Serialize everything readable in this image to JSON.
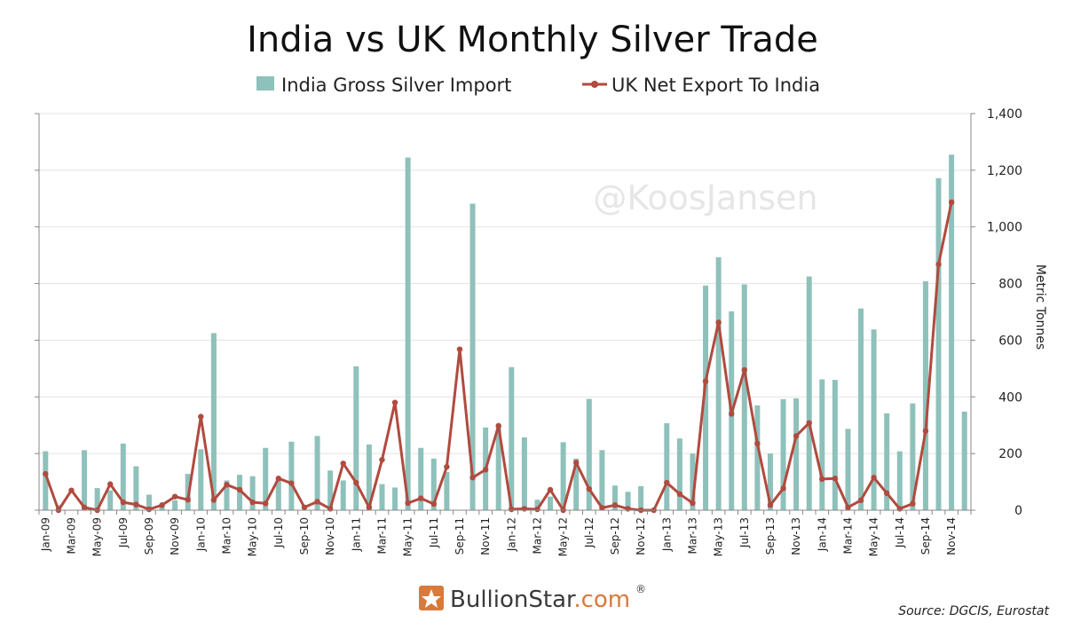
{
  "chart_data": {
    "type": "bar",
    "title": "India vs UK Monthly Silver Trade",
    "ylabel": "Metric Tonnes",
    "xlabel": "",
    "ylim": [
      0,
      1400
    ],
    "yticks": [
      "0",
      "200",
      "400",
      "600",
      "800",
      "1,000",
      "1,200",
      "1,400"
    ],
    "grid": true,
    "legend_position": "top-center",
    "x_tick_labels": [
      "Jan-09",
      "Mar-09",
      "May-09",
      "Jul-09",
      "Sep-09",
      "Nov-09",
      "Jan-10",
      "Mar-10",
      "May-10",
      "Jul-10",
      "Sep-10",
      "Nov-10",
      "Jan-11",
      "Mar-11",
      "May-11",
      "Jul-11",
      "Sep-11",
      "Nov-11",
      "Jan-12",
      "Mar-12",
      "May-12",
      "Jul-12",
      "Sep-12",
      "Nov-12",
      "Jan-13",
      "Mar-13",
      "May-13",
      "Jul-13",
      "Sep-13",
      "Nov-13",
      "Jan-14",
      "Mar-14",
      "May-14",
      "Jul-14",
      "Sep-14",
      "Nov-14"
    ],
    "categories": [
      "Jan-09",
      "Feb-09",
      "Mar-09",
      "Apr-09",
      "May-09",
      "Jun-09",
      "Jul-09",
      "Aug-09",
      "Sep-09",
      "Oct-09",
      "Nov-09",
      "Dec-09",
      "Jan-10",
      "Feb-10",
      "Mar-10",
      "Apr-10",
      "May-10",
      "Jun-10",
      "Jul-10",
      "Aug-10",
      "Sep-10",
      "Oct-10",
      "Nov-10",
      "Dec-10",
      "Jan-11",
      "Feb-11",
      "Mar-11",
      "Apr-11",
      "May-11",
      "Jun-11",
      "Jul-11",
      "Aug-11",
      "Sep-11",
      "Oct-11",
      "Nov-11",
      "Dec-11",
      "Jan-12",
      "Feb-12",
      "Mar-12",
      "Apr-12",
      "May-12",
      "Jun-12",
      "Jul-12",
      "Aug-12",
      "Sep-12",
      "Oct-12",
      "Nov-12",
      "Dec-12",
      "Jan-13",
      "Feb-13",
      "Mar-13",
      "Apr-13",
      "May-13",
      "Jun-13",
      "Jul-13",
      "Aug-13",
      "Sep-13",
      "Oct-13",
      "Nov-13",
      "Dec-13",
      "Jan-14",
      "Feb-14",
      "Mar-14",
      "Apr-14",
      "May-14",
      "Jun-14",
      "Jul-14",
      "Aug-14",
      "Sep-14",
      "Oct-14",
      "Nov-14",
      "Dec-14"
    ],
    "series": [
      {
        "name": "India Gross Silver Import",
        "type": "bar",
        "color": "#8fc1bb",
        "values": [
          208,
          18,
          0,
          212,
          78,
          70,
          235,
          155,
          55,
          18,
          35,
          128,
          215,
          625,
          105,
          125,
          120,
          220,
          110,
          242,
          0,
          262,
          140,
          105,
          508,
          232,
          92,
          80,
          1245,
          220,
          182,
          135,
          0,
          1082,
          292,
          302,
          505,
          257,
          37,
          48,
          240,
          182,
          393,
          212,
          87,
          65,
          85,
          0,
          307,
          253,
          200,
          793,
          893,
          702,
          797,
          370,
          200,
          392,
          395,
          825,
          462,
          460,
          287,
          712,
          638,
          342,
          208,
          377,
          808,
          1172,
          1255,
          348
        ]
      },
      {
        "name": "UK Net Export To India",
        "type": "line",
        "color": "#b14a3f",
        "values": [
          128,
          0,
          70,
          10,
          0,
          92,
          28,
          20,
          3,
          18,
          48,
          37,
          330,
          36,
          90,
          72,
          28,
          24,
          112,
          95,
          10,
          30,
          5,
          165,
          97,
          10,
          178,
          380,
          25,
          42,
          22,
          153,
          568,
          115,
          143,
          298,
          3,
          5,
          3,
          72,
          0,
          168,
          75,
          8,
          18,
          5,
          0,
          0,
          97,
          57,
          25,
          455,
          663,
          340,
          495,
          235,
          18,
          77,
          262,
          308,
          110,
          112,
          10,
          35,
          115,
          60,
          5,
          23,
          280,
          868,
          1087,
          null
        ]
      }
    ]
  },
  "watermark": "@KoosJansen",
  "brand": {
    "name": "BullionStar",
    "suffix": ".com",
    "reg": "®"
  },
  "source": "Source: DGCIS, Eurostat",
  "colors": {
    "grid": "#e3e3e3",
    "axis": "#888888",
    "text": "#222222"
  }
}
